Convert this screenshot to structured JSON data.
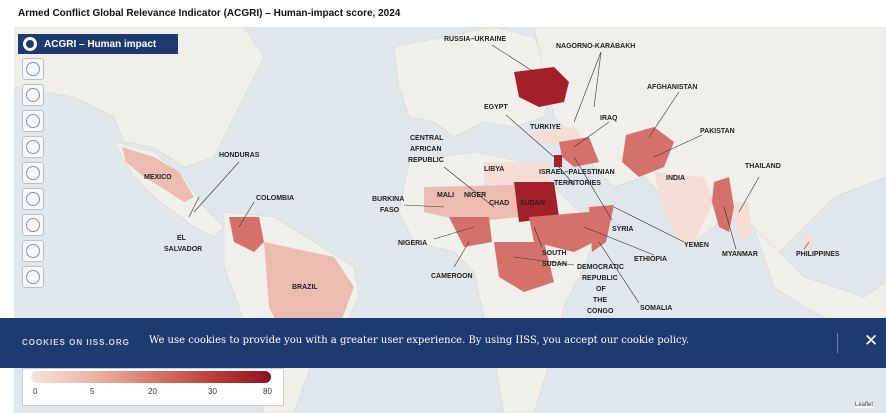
{
  "page_title": "Armed Conflict Global Relevance Indicator (ACGRI) – Human-impact score, 2024",
  "legend_header": "ACGRI – Human impact",
  "cookie": {
    "title": "COOKIES ON IISS.ORG",
    "text": "We use cookies to provide you with a greater user experience. By using IISS, you accept our cookie policy.",
    "close": "✕"
  },
  "scale": {
    "ticks": [
      "0",
      "5",
      "20",
      "30",
      "80"
    ]
  },
  "attribution": "Leaflet",
  "labels": {
    "russia_ukraine": "RUSSIA–UKRAINE",
    "nagorno": "NAGORNO-KARABAKH",
    "afghanistan": "AFGHANISTAN",
    "egypt": "EGYPT",
    "iraq": "IRAQ",
    "turkiye": "TURKIYE",
    "pakistan": "PAKISTAN",
    "honduras": "HONDURAS",
    "caf_1": "CENTRAL",
    "caf_2": "AFRICAN",
    "caf_3": "REPUBLIC",
    "libya": "LIBYA",
    "israel_1": "ISRAEL–PALESTINIAN",
    "israel_2": "TERRITORIES",
    "thailand": "THAILAND",
    "mexico": "MEXICO",
    "india": "INDIA",
    "colombia": "COLOMBIA",
    "burkina_1": "BURKINA",
    "burkina_2": "FASO",
    "mali": "MALI",
    "niger": "NIGER",
    "chad": "CHAD",
    "sudan": "SUDAN",
    "syria": "SYRIA",
    "el_salvador_1": "EL",
    "el_salvador_2": "SALVADOR",
    "nigeria": "NIGERIA",
    "yemen": "YEMEN",
    "myanmar": "MYANMAR",
    "philippines": "PHILIPPINES",
    "ethiopia": "ETHIOPIA",
    "south_sudan_1": "SOUTH",
    "south_sudan_2": "SUDAN",
    "drc_1": "DEMOCRATIC",
    "drc_2": "REPUBLIC",
    "drc_3": "OF",
    "drc_4": "THE",
    "drc_5": "CONGO",
    "cameroon": "CAMEROON",
    "brazil": "BRAZIL",
    "somalia": "SOMALIA"
  },
  "colors": {
    "water": "#dfe7ec",
    "land": "#f1efe9",
    "high": "#a3202a",
    "mid": "#d4716a",
    "low": "#ecbcb1",
    "lowest": "#f5ddd6"
  }
}
